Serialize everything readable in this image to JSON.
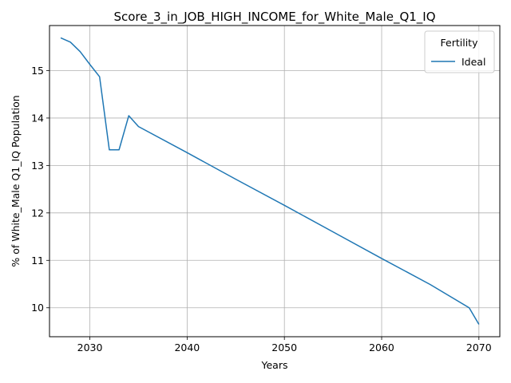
{
  "chart_data": {
    "type": "line",
    "title": "Score_3_in_JOB_HIGH_INCOME_for_White_Male_Q1_IQ",
    "xlabel": "Years",
    "ylabel": "% of White_Male Q1_IQ Population",
    "xlim": [
      2025.85,
      2072.15
    ],
    "ylim": [
      9.39,
      15.95
    ],
    "xticks": [
      2030,
      2040,
      2050,
      2060,
      2070
    ],
    "yticks": [
      10,
      11,
      12,
      13,
      14,
      15
    ],
    "grid": true,
    "legend": {
      "title": "Fertility",
      "placement": "top-right"
    },
    "series": [
      {
        "name": "Ideal",
        "color": "#1f77b4",
        "x": [
          2027,
          2028,
          2029,
          2030,
          2031,
          2032,
          2033,
          2034,
          2035,
          2040,
          2045,
          2050,
          2055,
          2060,
          2065,
          2069,
          2070
        ],
        "y": [
          15.69,
          15.6,
          15.4,
          15.13,
          14.87,
          13.33,
          13.33,
          14.05,
          13.82,
          13.27,
          12.71,
          12.16,
          11.6,
          11.04,
          10.49,
          10.0,
          9.65
        ]
      }
    ]
  }
}
